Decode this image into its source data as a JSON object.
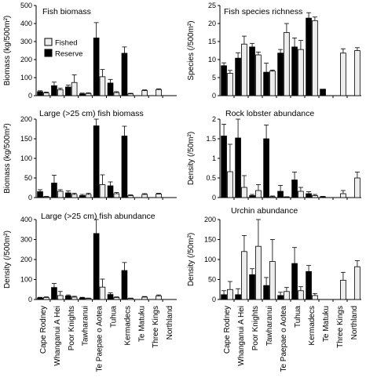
{
  "figure": {
    "categories": [
      "Cape Rodney",
      "Whanganui A Hei",
      "Poor Knights",
      "Tawharanui",
      "Te Paepae o Aotea",
      "Tuhua",
      "Kermadecs",
      "Te Matuku",
      "Three Kings",
      "Northland"
    ],
    "legend": {
      "fished": "Fished",
      "reserve": "Reserve"
    }
  },
  "chart_data": [
    {
      "type": "bar",
      "title": "Fish biomass",
      "ylabel": "Biomass (kg/500m²)",
      "ylim": [
        0,
        500
      ],
      "yticks": [
        0,
        100,
        200,
        300,
        400,
        500
      ],
      "categories": [
        "Cape Rodney",
        "Whanganui A Hei",
        "Poor Knights",
        "Tawharanui",
        "Te Paepae o Aotea",
        "Tuhua",
        "Kermadecs",
        "Te Matuku",
        "Three Kings",
        "Northland"
      ],
      "series": [
        {
          "name": "Reserve",
          "values": [
            22,
            55,
            48,
            10,
            320,
            70,
            235,
            null,
            null,
            null
          ],
          "errors": [
            5,
            20,
            10,
            4,
            85,
            20,
            35,
            null,
            null,
            null
          ]
        },
        {
          "name": "Fished",
          "values": [
            15,
            33,
            73,
            12,
            105,
            17,
            10,
            28,
            34,
            null
          ],
          "errors": [
            5,
            8,
            42,
            4,
            40,
            5,
            3,
            4,
            4,
            null
          ]
        }
      ],
      "legend_position": "top-left"
    },
    {
      "type": "bar",
      "title": "Fish species richness",
      "ylabel": "Species (/500m²)",
      "ylim": [
        0,
        25
      ],
      "yticks": [
        0,
        5,
        10,
        15,
        20,
        25
      ],
      "categories": [
        "Cape Rodney",
        "Whanganui A Hei",
        "Poor Knights",
        "Tawharanui",
        "Te Paepae o Aotea",
        "Tuhua",
        "Kermadecs",
        "Te Matuku",
        "Three Kings",
        "Northland"
      ],
      "series": [
        {
          "name": "Reserve",
          "values": [
            8.3,
            10.4,
            13.5,
            6.5,
            11.8,
            13.5,
            21.5,
            1.8,
            null,
            null
          ],
          "errors": [
            0.8,
            1.5,
            1.0,
            2.5,
            1.0,
            2.5,
            1.5,
            null,
            null,
            null
          ]
        },
        {
          "name": "Fished",
          "values": [
            6.2,
            14.3,
            11.3,
            6.8,
            17.5,
            12.8,
            20.8,
            null,
            11.8,
            12.5
          ],
          "errors": [
            0.8,
            2.2,
            0.8,
            0.3,
            2.5,
            2.5,
            1.0,
            null,
            1.2,
            0.8
          ]
        }
      ]
    },
    {
      "type": "bar",
      "title": "Large (>25 cm) fish biomass",
      "ylabel": "Biomass (kg/500m²)",
      "ylim": [
        0,
        200
      ],
      "yticks": [
        0,
        50,
        100,
        150,
        200
      ],
      "categories": [
        "Cape Rodney",
        "Whanganui A Hei",
        "Poor Knights",
        "Tawharanui",
        "Te Paepae o Aotea",
        "Tuhua",
        "Kermadecs",
        "Te Matuku",
        "Three Kings",
        "Northland"
      ],
      "series": [
        {
          "name": "Reserve",
          "values": [
            15,
            37,
            12,
            5,
            183,
            30,
            157,
            null,
            null,
            null
          ],
          "errors": [
            5,
            20,
            5,
            3,
            30,
            10,
            25,
            null,
            null,
            null
          ]
        },
        {
          "name": "Fished",
          "values": [
            2,
            16,
            8,
            8,
            33,
            10,
            5,
            8,
            9,
            null
          ],
          "errors": [
            1,
            4,
            3,
            3,
            25,
            3,
            2,
            2,
            2,
            null
          ]
        }
      ]
    },
    {
      "type": "bar",
      "title": "Rock lobster abundance",
      "ylabel": "Density (/50m²)",
      "ylim": [
        0,
        2
      ],
      "yticks": [
        0,
        0.5,
        1,
        1.5,
        2
      ],
      "categories": [
        "Cape Rodney",
        "Whanganui A Hei",
        "Poor Knights",
        "Tawharanui",
        "Te Paepae o Aotea",
        "Tuhua",
        "Kermadecs",
        "Te Matuku",
        "Three Kings",
        "Northland"
      ],
      "series": [
        {
          "name": "Reserve",
          "values": [
            1.57,
            1.52,
            0.05,
            1.5,
            0.16,
            0.45,
            0.1,
            0.02,
            null,
            null
          ],
          "errors": [
            0.3,
            0.7,
            0.03,
            0.35,
            0.15,
            0.2,
            0.05,
            0.01,
            null,
            null
          ]
        },
        {
          "name": "Fished",
          "values": [
            0.66,
            0.26,
            0.18,
            0.02,
            0.0,
            0.16,
            0.05,
            null,
            0.1,
            0.5
          ],
          "errors": [
            0.7,
            0.3,
            0.15,
            0.02,
            0.02,
            0.1,
            0.03,
            null,
            0.08,
            0.15
          ]
        }
      ]
    },
    {
      "type": "bar",
      "title": "Large (>25 cm) fish abundance",
      "ylabel": "Density (/500m²)",
      "ylim": [
        0,
        400
      ],
      "yticks": [
        0,
        100,
        200,
        300,
        400
      ],
      "categories": [
        "Cape Rodney",
        "Whanganui A Hei",
        "Poor Knights",
        "Tawharanui",
        "Te Paepae o Aotea",
        "Tuhua",
        "Kermadecs",
        "Te Matuku",
        "Three Kings",
        "Northland"
      ],
      "series": [
        {
          "name": "Reserve",
          "values": [
            8,
            60,
            18,
            8,
            330,
            25,
            145,
            null,
            null,
            null
          ],
          "errors": [
            3,
            20,
            5,
            3,
            75,
            8,
            40,
            null,
            null,
            null
          ]
        },
        {
          "name": "Fished",
          "values": [
            10,
            20,
            12,
            5,
            62,
            10,
            5,
            12,
            18,
            null
          ],
          "errors": [
            3,
            20,
            4,
            2,
            40,
            3,
            2,
            3,
            5,
            null
          ]
        }
      ]
    },
    {
      "type": "bar",
      "title": "Urchin abundance",
      "ylabel": "Density (/50m²)",
      "ylim": [
        0,
        200
      ],
      "yticks": [
        0,
        50,
        100,
        150,
        200
      ],
      "categories": [
        "Cape Rodney",
        "Whanganui A Hei",
        "Poor Knights",
        "Tawharanui",
        "Te Paepae o Aotea",
        "Tuhua",
        "Kermadecs",
        "Te Matuku",
        "Three Kings",
        "Northland"
      ],
      "series": [
        {
          "name": "Reserve",
          "values": [
            12,
            12,
            62,
            35,
            10,
            90,
            70,
            null,
            null,
            null
          ],
          "errors": [
            10,
            15,
            15,
            20,
            8,
            40,
            15,
            null,
            null,
            null
          ]
        },
        {
          "name": "Fished",
          "values": [
            25,
            120,
            133,
            95,
            20,
            22,
            10,
            null,
            48,
            82
          ],
          "errors": [
            20,
            40,
            70,
            55,
            10,
            10,
            5,
            null,
            20,
            15
          ]
        }
      ]
    }
  ]
}
